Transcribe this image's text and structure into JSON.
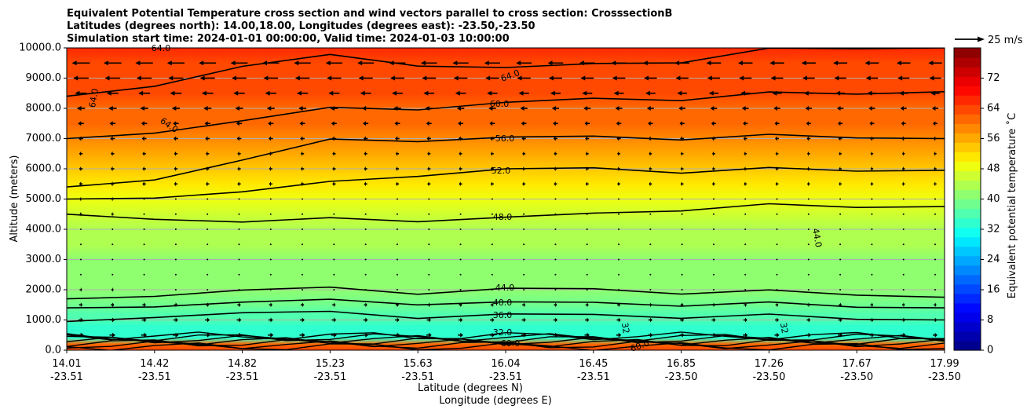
{
  "chart_data": {
    "type": "heatmap",
    "title_lines": [
      "Equivalent Potential Temperature cross section and wind vectors parallel to cross section: CrosssectionB",
      "Latitudes (degrees north): 14.00,18.00, Longitudes (degrees east): -23.50,-23.50",
      "Simulation start time: 2024-01-01 00:00:00, Valid time: 2024-01-03 10:00:00"
    ],
    "ylabel": "Altitude (meters)",
    "xlabel_lat": "Latitude (degrees N)",
    "xlabel_lon": "Longitude (degrees E)",
    "ylim": [
      0,
      10000
    ],
    "y_ticks": [
      "0.0",
      "1000.0",
      "2000.0",
      "3000.0",
      "4000.0",
      "5000.0",
      "6000.0",
      "7000.0",
      "8000.0",
      "9000.0",
      "10000.0"
    ],
    "x_ticks": [
      {
        "lat": "14.01",
        "lon": "-23.51"
      },
      {
        "lat": "14.42",
        "lon": "-23.51"
      },
      {
        "lat": "14.82",
        "lon": "-23.51"
      },
      {
        "lat": "15.23",
        "lon": "-23.51"
      },
      {
        "lat": "15.63",
        "lon": "-23.51"
      },
      {
        "lat": "16.04",
        "lon": "-23.51"
      },
      {
        "lat": "16.45",
        "lon": "-23.51"
      },
      {
        "lat": "16.85",
        "lon": "-23.50"
      },
      {
        "lat": "17.26",
        "lon": "-23.50"
      },
      {
        "lat": "17.67",
        "lon": "-23.50"
      },
      {
        "lat": "17.99",
        "lon": "-23.50"
      }
    ],
    "x_range": [
      14.01,
      17.99
    ],
    "colorbar": {
      "label": "Equivalent potential temperature ˚C",
      "range": [
        0,
        80
      ],
      "ticks": [
        "0",
        "8",
        "16",
        "24",
        "32",
        "40",
        "48",
        "56",
        "64",
        "72"
      ],
      "colors": [
        "#00008f",
        "#0000ad",
        "#0000cc",
        "#0000ea",
        "#0008ff",
        "#0028ff",
        "#0048ff",
        "#0068ff",
        "#0088ff",
        "#00a8ff",
        "#00c8ff",
        "#00e8ff",
        "#10fff0",
        "#30ffcf",
        "#50ffaf",
        "#70ff8f",
        "#8fff70",
        "#afff50",
        "#cfff30",
        "#efff10",
        "#ffe800",
        "#ffc800",
        "#ffa800",
        "#ff8800",
        "#ff6800",
        "#ff4800",
        "#ff2800",
        "#ff0800",
        "#ea0000",
        "#cc0000",
        "#ad0000",
        "#8f0000"
      ]
    },
    "wind_key": {
      "label": "25 m/s",
      "speed": 25
    },
    "contour_labels": [
      "64.0",
      "64.0",
      "64.0",
      "64.0",
      "60.0",
      "56.0",
      "52.0",
      "48.0",
      "44.0",
      "44.0",
      "40.0",
      "36.0",
      "32.0",
      "32",
      "32",
      "60.0",
      "60.0"
    ],
    "profile": {
      "heights": [
        0,
        200,
        400,
        600,
        800,
        1000,
        1200,
        1500,
        2000,
        2500,
        3000,
        3500,
        4000,
        4500,
        5000,
        5500,
        6000,
        6500,
        7000,
        7500,
        8000,
        8500,
        9000,
        9500,
        10000
      ],
      "theta_left": [
        64,
        62,
        34,
        35,
        35,
        36,
        37,
        38,
        40,
        41,
        42,
        43,
        45,
        47,
        49,
        52,
        54,
        57,
        60,
        62,
        64,
        65,
        66,
        66,
        66
      ],
      "theta_right": [
        64,
        60,
        33,
        34,
        34,
        35,
        36,
        38,
        40,
        41,
        41,
        42,
        43,
        45,
        48,
        50,
        52,
        55,
        57,
        58,
        60,
        61,
        62,
        63,
        64
      ]
    },
    "contours": [
      {
        "level": "36.0",
        "alt": [
          950,
          1150,
          1250,
          1200,
          1150,
          1150,
          1150,
          1150,
          1100,
          1050,
          1000
        ]
      },
      {
        "level": "40.0",
        "alt": [
          1400,
          1500,
          1600,
          1600,
          1600,
          1550,
          1550,
          1550,
          1500,
          1450,
          1400
        ]
      },
      {
        "level": "44.0",
        "alt": [
          1700,
          1850,
          2000,
          2000,
          1950,
          2000,
          2000,
          1950,
          1900,
          1850,
          1750
        ]
      },
      {
        "level": "48.0",
        "alt": [
          4500,
          4400,
          4250,
          4300,
          4350,
          4350,
          4500,
          4700,
          4750,
          4750,
          4750
        ]
      },
      {
        "level": "52.0",
        "alt": [
          5000,
          5100,
          5250,
          5500,
          5850,
          5950,
          6000,
          5950,
          5950,
          5950,
          5950
        ]
      },
      {
        "level": "56.0",
        "alt": [
          5400,
          5700,
          6300,
          6900,
          7000,
          7000,
          7050,
          7050,
          7050,
          7050,
          7000
        ]
      },
      {
        "level": "60.0",
        "alt": [
          7000,
          7250,
          7600,
          7950,
          8050,
          8150,
          8300,
          8350,
          8450,
          8500,
          8550
        ]
      },
      {
        "level": "64.0",
        "alt": [
          8400,
          8800,
          9400,
          9700,
          9500,
          9300,
          9450,
          9600,
          9900,
          10000,
          10000
        ]
      }
    ],
    "wind_rows": [
      {
        "alt": 9500,
        "u": -15
      },
      {
        "alt": 9000,
        "u": -13
      },
      {
        "alt": 8500,
        "u": -10
      },
      {
        "alt": 8000,
        "u": -7
      },
      {
        "alt": 7500,
        "u": -5
      },
      {
        "alt": 7000,
        "u": -4
      },
      {
        "alt": 6500,
        "u": -3
      },
      {
        "alt": 6000,
        "u": -3
      },
      {
        "alt": 5500,
        "u": -3
      },
      {
        "alt": 5000,
        "u": -2
      },
      {
        "alt": 4500,
        "u": -2
      },
      {
        "alt": 4000,
        "u": -1
      },
      {
        "alt": 3500,
        "u": 0
      },
      {
        "alt": 3000,
        "u": 0
      },
      {
        "alt": 2500,
        "u": 1
      },
      {
        "alt": 2000,
        "u": 2
      },
      {
        "alt": 1500,
        "u": 3
      },
      {
        "alt": 1000,
        "u": 4
      },
      {
        "alt": 500,
        "u": 5
      }
    ]
  }
}
